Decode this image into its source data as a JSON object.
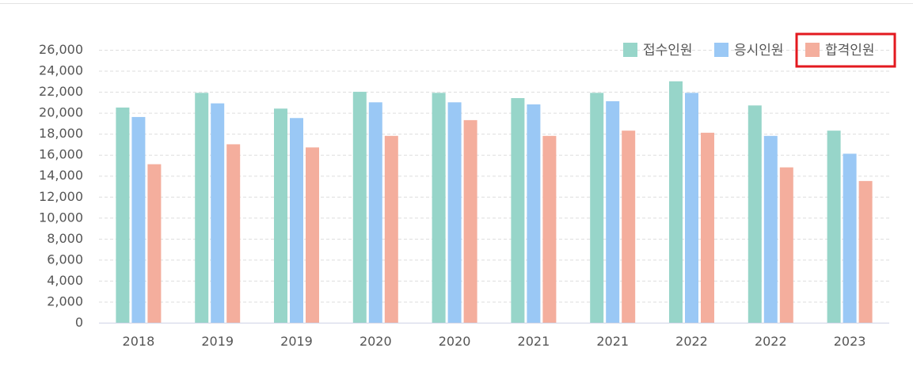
{
  "colors": {
    "series": [
      "#97d5c9",
      "#9ac8f5",
      "#f4ae9d"
    ],
    "highlight": "#e3191f"
  },
  "legend": {
    "highlighted_index": 2
  },
  "chart_data": {
    "type": "bar",
    "categories": [
      "2018",
      "2019",
      "2019",
      "2020",
      "2020",
      "2021",
      "2021",
      "2022",
      "2022",
      "2023"
    ],
    "series": [
      {
        "name": "접수인원",
        "values": [
          20500,
          21900,
          20400,
          22000,
          21900,
          21400,
          21900,
          23000,
          20700,
          18300
        ]
      },
      {
        "name": "응시인원",
        "values": [
          19600,
          20900,
          19500,
          21000,
          21000,
          20800,
          21100,
          21900,
          17800,
          16100
        ]
      },
      {
        "name": "합격인원",
        "values": [
          15100,
          17000,
          16700,
          17800,
          19300,
          17800,
          18300,
          18100,
          14800,
          13500
        ]
      }
    ],
    "ylim": [
      0,
      26000
    ],
    "yticks": [
      "0",
      "2,000",
      "4,000",
      "6,000",
      "8,000",
      "10,000",
      "12,000",
      "14,000",
      "16,000",
      "18,000",
      "20,000",
      "22,000",
      "24,000",
      "26,000"
    ],
    "grid": true,
    "legend_position": "top-right"
  }
}
